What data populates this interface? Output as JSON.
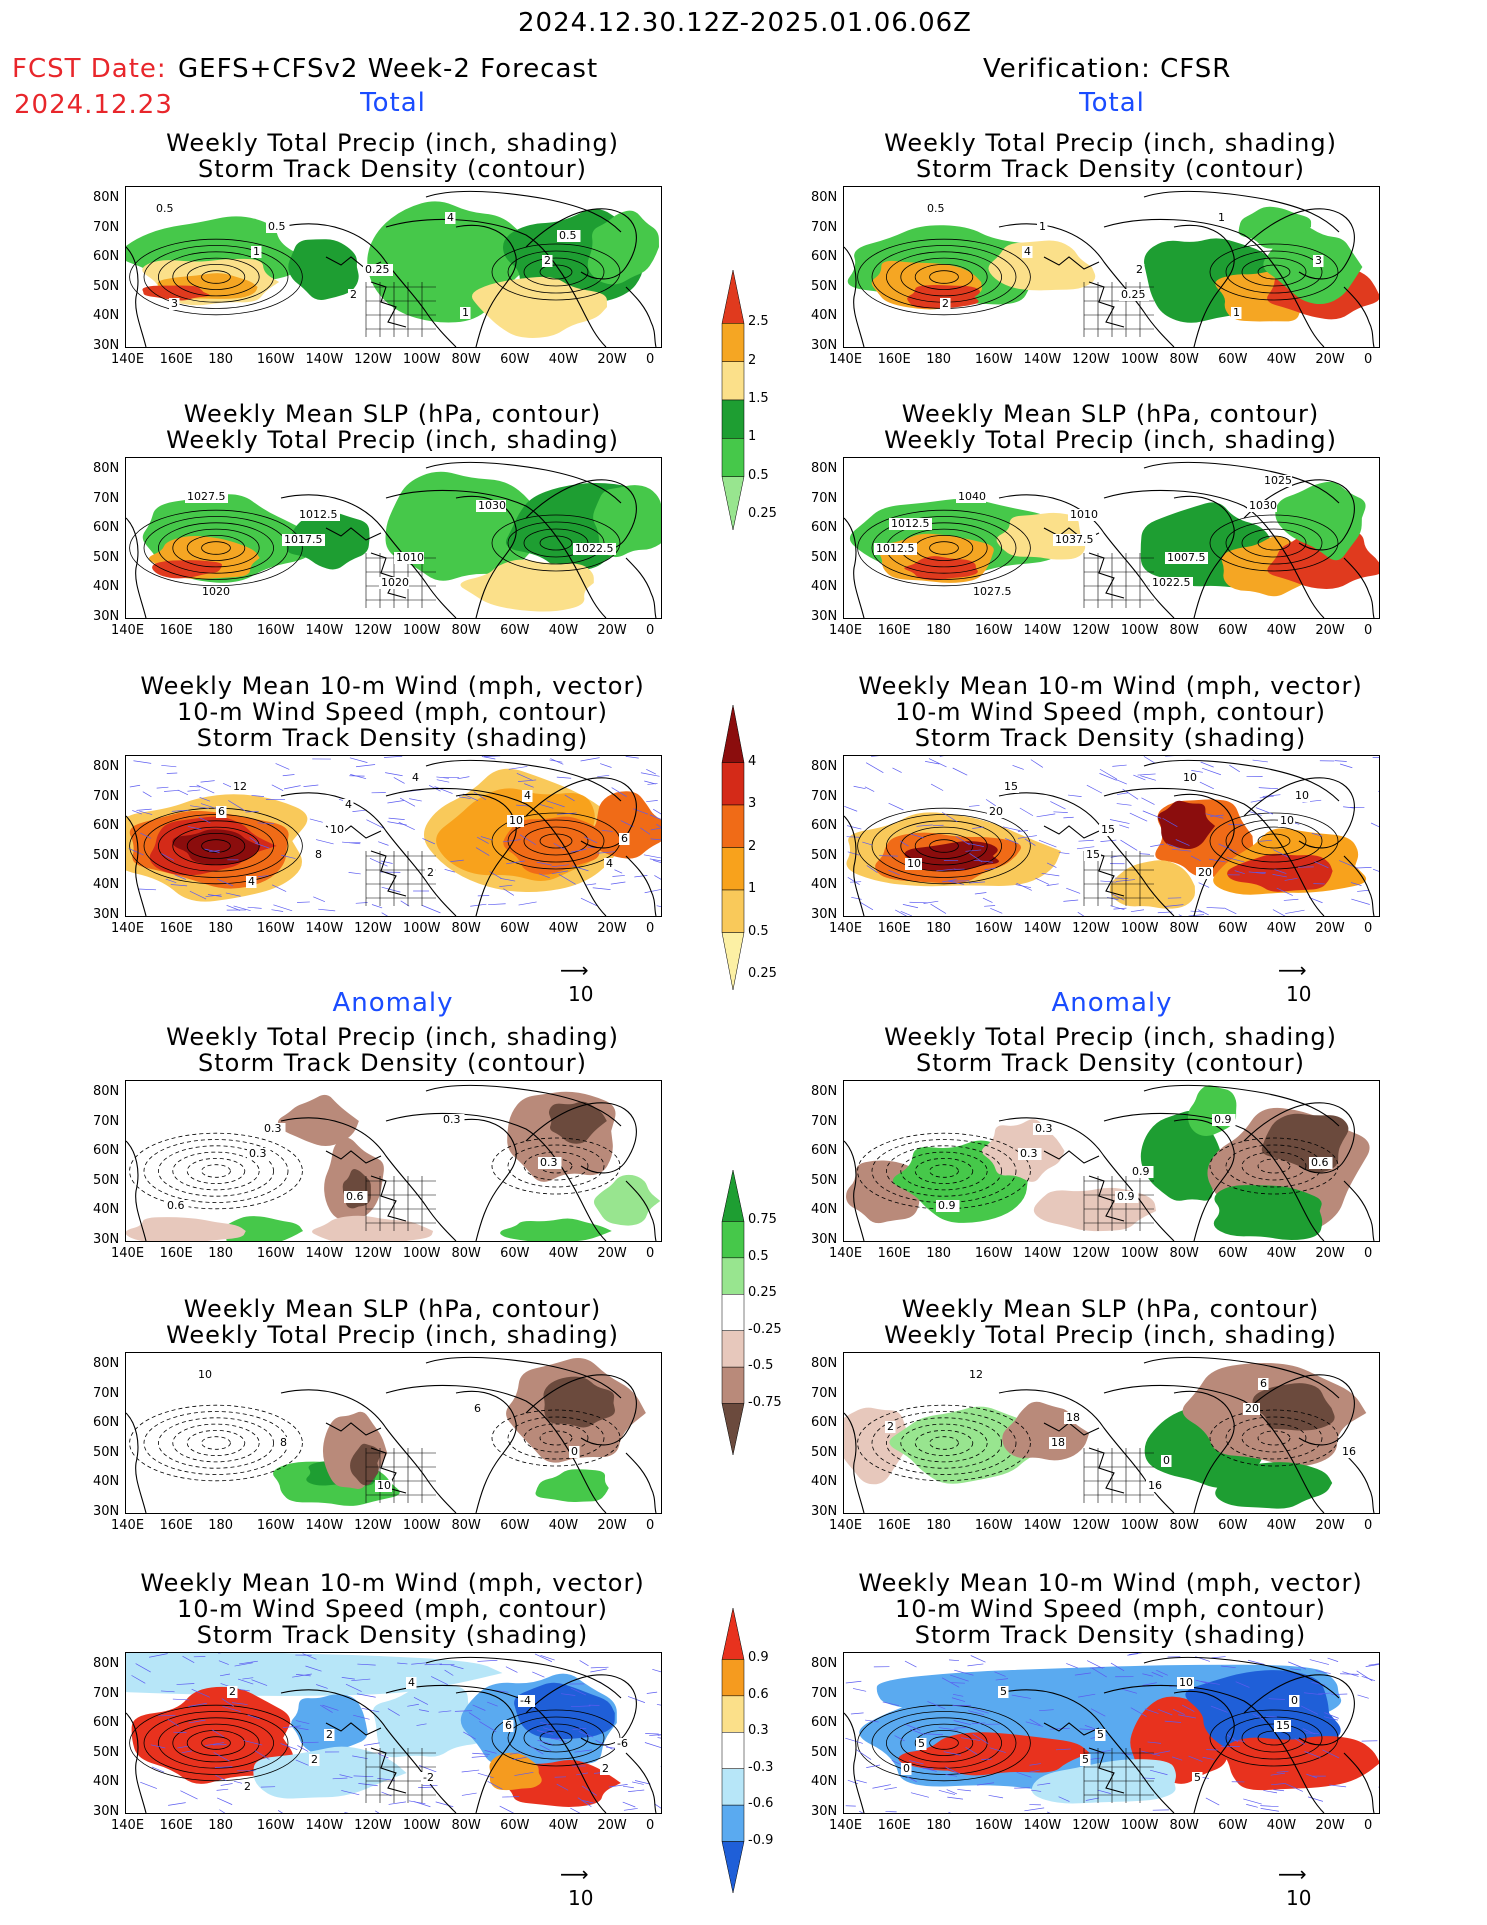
{
  "header": {
    "date_range": "2024.12.30.12Z-2025.01.06.06Z",
    "fcst_label": "FCST Date:",
    "fcst_model": "GEFS+CFSv2 Week-2 Forecast",
    "fcst_date": "2024.12.23",
    "verification": "Verification: CFSR"
  },
  "sections": {
    "total": "Total",
    "anomaly": "Anomaly"
  },
  "titles": {
    "precip_storm": [
      "Weekly Total Precip (inch, shading)",
      "Storm Track Density (contour)"
    ],
    "slp_precip": [
      "Weekly Mean SLP (hPa, contour)",
      "Weekly Total Precip (inch, shading)"
    ],
    "wind_storm": [
      "Weekly Mean 10-m Wind (mph, vector)",
      "10-m Wind Speed (mph, contour)",
      "Storm Track Density (shading)"
    ]
  },
  "axes": {
    "lat": [
      "80N",
      "70N",
      "60N",
      "50N",
      "40N",
      "30N"
    ],
    "lon": [
      "140E",
      "160E",
      "180",
      "160W",
      "140W",
      "120W",
      "100W",
      "80W",
      "60W",
      "40W",
      "20W",
      "0"
    ]
  },
  "vector_ref": "10",
  "colorbars": {
    "precip_total": {
      "labels": [
        "2.5",
        "2",
        "1.5",
        "1",
        "0.5",
        "0.25"
      ],
      "colors": [
        "#e03a1e",
        "#f5a623",
        "#fbe08a",
        "#1e9e32",
        "#46c84a",
        "#98e58f"
      ]
    },
    "storm_total": {
      "labels": [
        "4",
        "3",
        "2",
        "1",
        "0.5",
        "0.25"
      ],
      "colors": [
        "#8b0d0d",
        "#d42a18",
        "#f06b17",
        "#f8a21c",
        "#f9c95a",
        "#fcf0a4"
      ]
    },
    "precip_anom": {
      "labels": [
        "0.75",
        "0.5",
        "0.25",
        "-0.25",
        "-0.5",
        "-0.75"
      ],
      "colors": [
        "#1e9e32",
        "#46c84a",
        "#98e58f",
        "#ffffff",
        "#e7c8bc",
        "#b98a7a",
        "#6b4a3d"
      ]
    },
    "storm_anom": {
      "labels": [
        "0.9",
        "0.6",
        "0.3",
        "-0.3",
        "-0.6",
        "-0.9"
      ],
      "colors": [
        "#e8321e",
        "#f59b1f",
        "#fbe08a",
        "#ffffff",
        "#b7e6f8",
        "#5aaaf0",
        "#1f5fd8"
      ]
    }
  },
  "contour_labels": {
    "p1": [
      "0.5",
      "1",
      "2",
      "4",
      "2",
      "3",
      "0.5",
      "0.25",
      "1",
      "0.5"
    ],
    "p2": [
      "0.5",
      "4",
      "0.25",
      "1",
      "3",
      "2",
      "1",
      "2",
      "1"
    ],
    "p3": [
      "1027.5",
      "1017.5",
      "1020",
      "1030",
      "1022.5",
      "1020",
      "1012.5",
      "1010"
    ],
    "p4": [
      "1040",
      "1037.5",
      "1022.5",
      "1030",
      "1012.5",
      "1027.5",
      "1010",
      "1007.5",
      "1025",
      "1012.5"
    ],
    "p5": [
      "6",
      "8",
      "4",
      "10",
      "4",
      "12",
      "10",
      "2",
      "4",
      "6",
      "4",
      "4"
    ],
    "p6": [
      "20",
      "15",
      "10",
      "10",
      "10",
      "15",
      "15",
      "20",
      "10"
    ],
    "p7": [
      "0.3",
      "0.6",
      "0.3",
      "0.3",
      "0.6",
      "0.3"
    ],
    "p8": [
      "0.3",
      "0.9",
      "0.9",
      "0.6",
      "0.9",
      "0.3",
      "0.9"
    ],
    "p9": [
      "8",
      "10",
      "6",
      "0",
      "10"
    ],
    "p10": [
      "18",
      "16",
      "20",
      "16",
      "12",
      "18",
      "0",
      "6",
      "2"
    ],
    "p11": [
      "2",
      "4",
      "6",
      "2",
      "2",
      "2",
      "-2",
      "-4",
      "-6",
      "2"
    ],
    "p12": [
      "5",
      "10",
      "15",
      "0",
      "5",
      "5",
      "5",
      "0",
      "5"
    ]
  }
}
